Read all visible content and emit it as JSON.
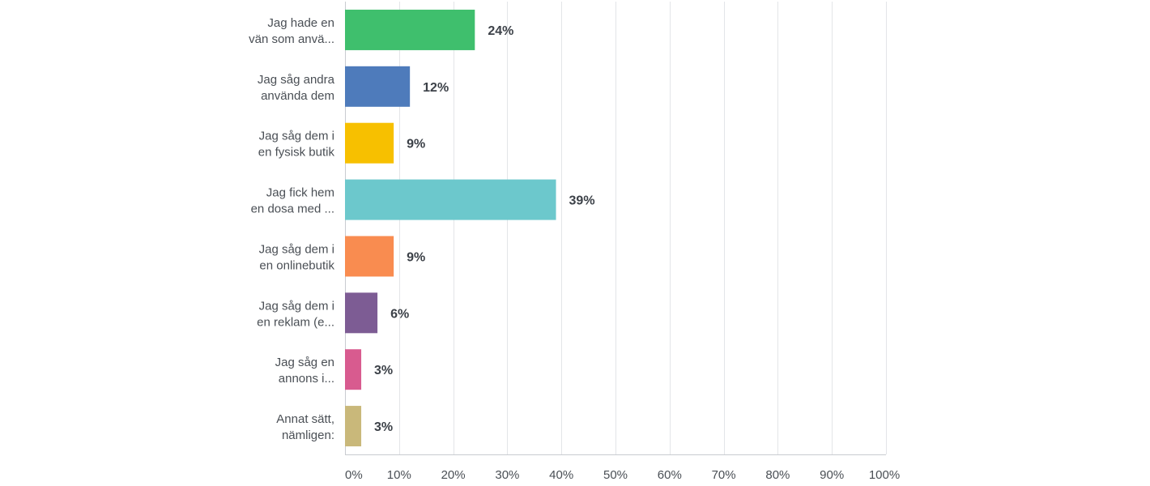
{
  "chart_data": {
    "type": "bar",
    "orientation": "horizontal",
    "categories": [
      [
        "Jag hade en",
        "vän som anvä..."
      ],
      [
        "Jag såg andra",
        "använda dem"
      ],
      [
        "Jag såg dem i",
        "en fysisk butik"
      ],
      [
        "Jag fick hem",
        "en dosa med ..."
      ],
      [
        "Jag såg dem i",
        "en onlinebutik"
      ],
      [
        "Jag såg dem i",
        "en reklam (e..."
      ],
      [
        "Jag såg en",
        "annons i..."
      ],
      [
        "Annat sätt,",
        "nämligen:"
      ]
    ],
    "values": [
      24,
      12,
      9,
      39,
      9,
      6,
      3,
      3
    ],
    "value_labels": [
      "24%",
      "12%",
      "9%",
      "39%",
      "9%",
      "6%",
      "3%",
      "3%"
    ],
    "colors": [
      "#3fbf6d",
      "#4e7bbb",
      "#f7c000",
      "#6cc8cc",
      "#f98c50",
      "#7d5c94",
      "#d85b8f",
      "#c9b87a"
    ],
    "xlim": [
      0,
      100
    ],
    "xticks": [
      0,
      10,
      20,
      30,
      40,
      50,
      60,
      70,
      80,
      90,
      100
    ],
    "xtick_labels": [
      "0%",
      "10%",
      "20%",
      "30%",
      "40%",
      "50%",
      "60%",
      "70%",
      "80%",
      "90%",
      "100%"
    ],
    "grid": true,
    "title": "",
    "xlabel": "",
    "ylabel": ""
  }
}
